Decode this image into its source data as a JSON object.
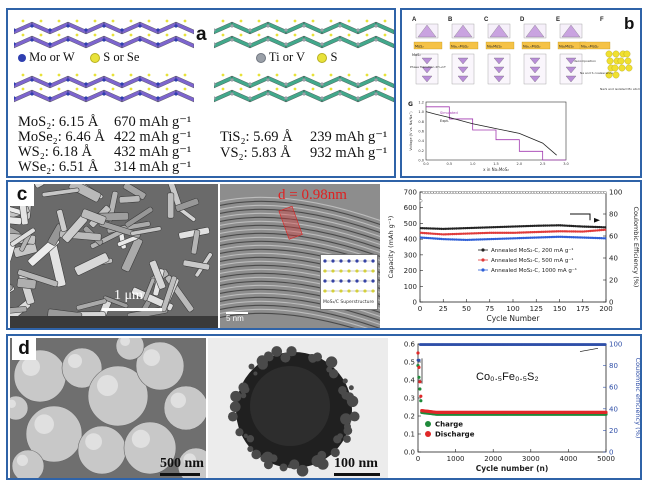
{
  "panel_a": {
    "letter": "a",
    "legend_left": [
      "Mo or W",
      "S or Se"
    ],
    "legend_right": [
      "Ti or V",
      "S"
    ],
    "props_left": [
      {
        "formula": "MoS₂: 6.15 Å",
        "capacity": "670 mAh g⁻¹"
      },
      {
        "formula": "MoSe₂: 6.46 Å",
        "capacity": "422 mAh g⁻¹"
      },
      {
        "formula": "WS₂: 6.18 Å",
        "capacity": "432 mAh g⁻¹"
      },
      {
        "formula": "WSe₂: 6.51 Å",
        "capacity": "314 mAh g⁻¹"
      }
    ],
    "props_right": [
      {
        "formula": "TiS₂: 5.69 Å",
        "capacity": "239 mAh g⁻¹"
      },
      {
        "formula": "VS₂: 5.83 Å",
        "capacity": "932 mAh g⁻¹"
      }
    ],
    "colors": {
      "purple": "#6f55c9",
      "green": "#2e9f7f",
      "mo_atom": "#2f3fb0",
      "s_atom": "#e8e23a",
      "ti_atom": "#9aa0a8"
    }
  },
  "panel_b": {
    "letter": "b",
    "structure_labels": [
      "A",
      "B",
      "C",
      "D",
      "E",
      "F"
    ],
    "phase_labels": [
      "MoS₂",
      "Na₀.₅MoS₂",
      "Na₁MoS₂",
      "Na₁.₅MoS₂",
      "Na₂MoS₂",
      "Na₂.₅MoS₂"
    ],
    "phase_transition": "Phase Transition 2H→1T",
    "annotations": [
      "Na and S coalescence",
      "Na₂S and isolated Mo atoms",
      "decomposition"
    ],
    "graph_label": "G",
    "ylabel": "Voltage (V vs. Na/Na⁺)",
    "xlabel": "x in NaₓMoS₂",
    "legend": [
      "Simulated",
      "Expt."
    ],
    "x_ticks": [
      "0.0",
      "0.5",
      "1.0",
      "1.5",
      "2.0",
      "2.5",
      "3.0"
    ],
    "y_ticks": [
      "0.0",
      "0.2",
      "0.4",
      "0.6",
      "0.8",
      "1.0",
      "1.2"
    ]
  },
  "panel_c": {
    "letter": "c",
    "sem_scale": "1 μm",
    "tem_scale": "5 nm",
    "d_spacing": "d = 0.98nm",
    "inset_caption": "MoS₂/C Superstructure",
    "chart_data": {
      "type": "scatter",
      "xlabel": "Cycle Number",
      "ylabel": "Capacity (mAh g⁻¹)",
      "y2label": "Coulombic Efficiency (%)",
      "xlim": [
        0,
        200
      ],
      "ylim": [
        0,
        700
      ],
      "y2lim": [
        0,
        100
      ],
      "x_ticks": [
        0,
        25,
        50,
        75,
        100,
        125,
        150,
        175,
        200
      ],
      "y_ticks": [
        0,
        100,
        200,
        300,
        400,
        500,
        600,
        700
      ],
      "y2_ticks": [
        0,
        20,
        40,
        60,
        80,
        100
      ],
      "series": [
        {
          "name": "Annealed MoS₂-C, 200 mA g⁻¹",
          "color": "#222222",
          "x": [
            1,
            25,
            50,
            75,
            100,
            125,
            150,
            175,
            200
          ],
          "y": [
            470,
            465,
            470,
            475,
            480,
            485,
            488,
            480,
            475
          ]
        },
        {
          "name": "Annealed MoS₂-C, 500 mA g⁻¹",
          "color": "#e03a3a",
          "x": [
            1,
            25,
            50,
            75,
            100,
            125,
            150,
            175,
            200
          ],
          "y": [
            440,
            430,
            435,
            440,
            440,
            445,
            450,
            448,
            460
          ]
        },
        {
          "name": "Annealed MoS₂-C, 1000 mA g⁻¹",
          "color": "#2f5fd6",
          "x": [
            1,
            25,
            50,
            75,
            100,
            125,
            150,
            175,
            200
          ],
          "y": [
            410,
            400,
            395,
            400,
            405,
            410,
            415,
            410,
            405
          ]
        }
      ],
      "coulombic_efficiency": {
        "x": [
          1,
          5,
          25,
          50,
          75,
          100,
          125,
          150,
          175,
          200
        ],
        "y": [
          92,
          99,
          99.5,
          99.5,
          99.5,
          99.5,
          99.5,
          99.5,
          99.5,
          99.5
        ]
      }
    }
  },
  "panel_d": {
    "letter": "d",
    "sem_scale": "500 nm",
    "tem_scale": "100 nm",
    "chart_data": {
      "type": "scatter",
      "title": "Co₀.₅Fe₀.₅S₂",
      "xlabel": "Cycle number (n)",
      "ylabel": "Capacity (mAh g⁻¹)",
      "y2label": "Coulombic efficiency (%)",
      "xlim": [
        0,
        5000
      ],
      "ylim": [
        0.0,
        0.6
      ],
      "y2lim": [
        0,
        100
      ],
      "x_ticks": [
        0,
        1000,
        2000,
        3000,
        4000,
        5000
      ],
      "y_ticks": [
        0.0,
        0.1,
        0.2,
        0.3,
        0.4,
        0.5,
        0.6
      ],
      "y2_ticks": [
        0,
        20,
        40,
        60,
        80,
        100
      ],
      "series": [
        {
          "name": "Charge",
          "color": "#1f8a3a",
          "x": [
            0,
            100,
            500,
            1000,
            2000,
            3000,
            4000,
            5000
          ],
          "y": [
            0.48,
            0.22,
            0.21,
            0.21,
            0.21,
            0.21,
            0.21,
            0.21
          ]
        },
        {
          "name": "Discharge",
          "color": "#e02828",
          "x": [
            0,
            100,
            500,
            1000,
            2000,
            3000,
            4000,
            5000
          ],
          "y": [
            0.55,
            0.23,
            0.22,
            0.22,
            0.22,
            0.22,
            0.22,
            0.22
          ]
        }
      ],
      "coulombic_efficiency": {
        "x": [
          0,
          100,
          500,
          1000,
          2000,
          3000,
          4000,
          5000
        ],
        "y": [
          85,
          99,
          99.5,
          99.5,
          99.5,
          99.5,
          99.5,
          99.5
        ],
        "color": "#2f4fa8"
      }
    }
  }
}
